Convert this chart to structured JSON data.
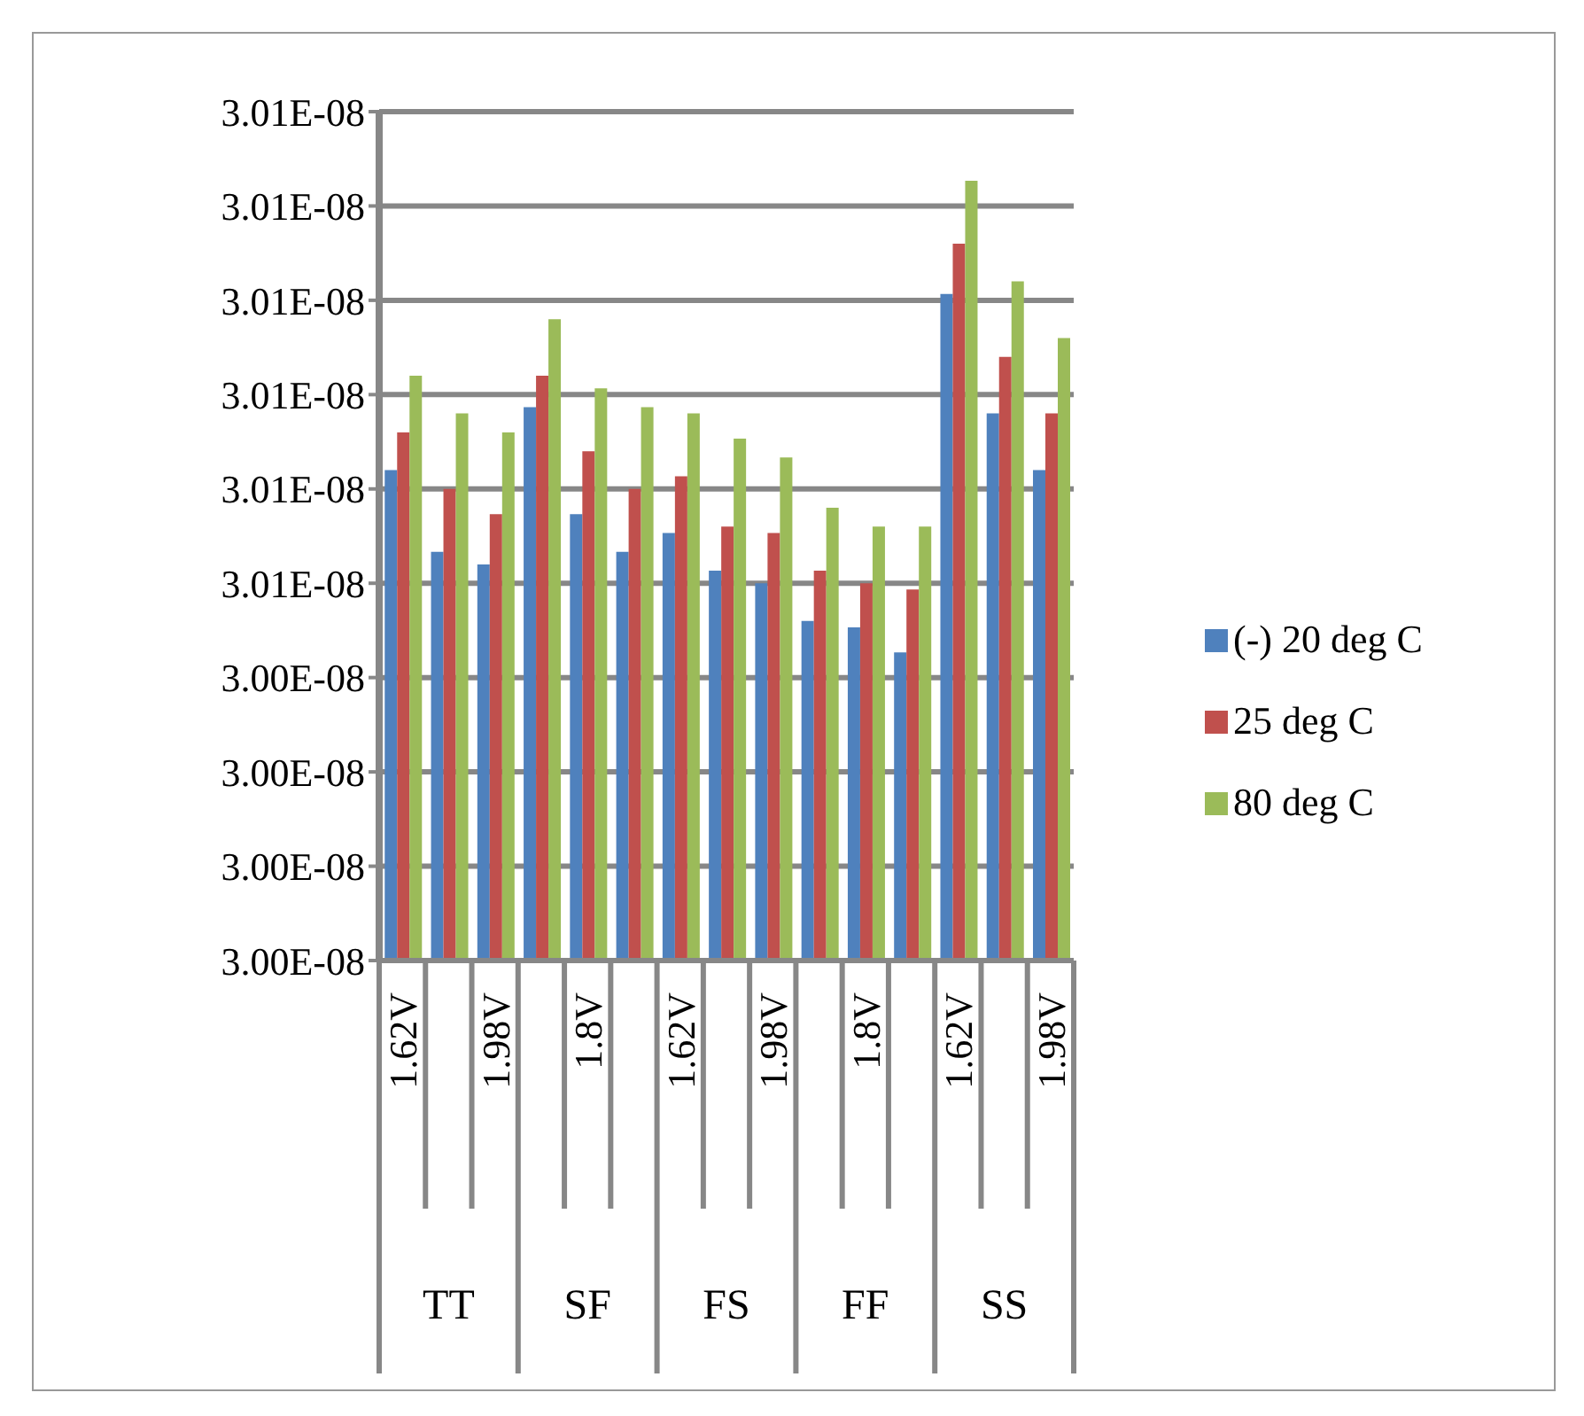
{
  "chart_data": {
    "type": "bar",
    "categories": [
      "1.62V",
      null,
      "1.98V",
      null,
      "1.8V",
      null,
      "1.62V",
      null,
      "1.98V",
      null,
      "1.8V",
      null,
      "1.62V",
      null,
      "1.98V"
    ],
    "series": [
      {
        "name": "(-) 20 deg C",
        "color": "#4f81bd",
        "values": [
          3.0078e-08,
          3.0065e-08,
          3.0063e-08,
          3.0088e-08,
          3.0071e-08,
          3.0065e-08,
          3.0068e-08,
          3.0062e-08,
          3.006e-08,
          3.0054e-08,
          3.0053e-08,
          3.0049e-08,
          3.0106e-08,
          3.0087e-08,
          3.0078e-08
        ]
      },
      {
        "name": "25 deg C",
        "color": "#c0504d",
        "values": [
          3.0084e-08,
          3.0075e-08,
          3.0071e-08,
          3.0093e-08,
          3.0081e-08,
          3.0075e-08,
          3.0077e-08,
          3.0069e-08,
          3.0068e-08,
          3.0062e-08,
          3.006e-08,
          3.0059e-08,
          3.0114e-08,
          3.0096e-08,
          3.0087e-08
        ]
      },
      {
        "name": "80 deg C",
        "color": "#9bbb59",
        "values": [
          3.0093e-08,
          3.0087e-08,
          3.0084e-08,
          3.0102e-08,
          3.0091e-08,
          3.0088e-08,
          3.0087e-08,
          3.0083e-08,
          3.008e-08,
          3.0072e-08,
          3.0069e-08,
          3.0069e-08,
          3.0124e-08,
          3.0108e-08,
          3.0099e-08
        ]
      }
    ],
    "ylim": [
      3e-08,
      3.0135e-08
    ],
    "yticks": [
      {
        "value": 3e-08,
        "label": "3.00E-08"
      },
      {
        "value": 3.0015e-08,
        "label": "3.00E-08"
      },
      {
        "value": 3.003e-08,
        "label": "3.00E-08"
      },
      {
        "value": 3.0045e-08,
        "label": "3.00E-08"
      },
      {
        "value": 3.006e-08,
        "label": "3.01E-08"
      },
      {
        "value": 3.0075e-08,
        "label": "3.01E-08"
      },
      {
        "value": 3.009e-08,
        "label": "3.01E-08"
      },
      {
        "value": 3.0105e-08,
        "label": "3.01E-08"
      },
      {
        "value": 3.012e-08,
        "label": "3.01E-08"
      },
      {
        "value": 3.0135e-08,
        "label": "3.01E-08"
      }
    ],
    "annotations": [
      "TT",
      "SF",
      "FS",
      "FF",
      "SS"
    ],
    "grid": "y",
    "legend": "right"
  }
}
